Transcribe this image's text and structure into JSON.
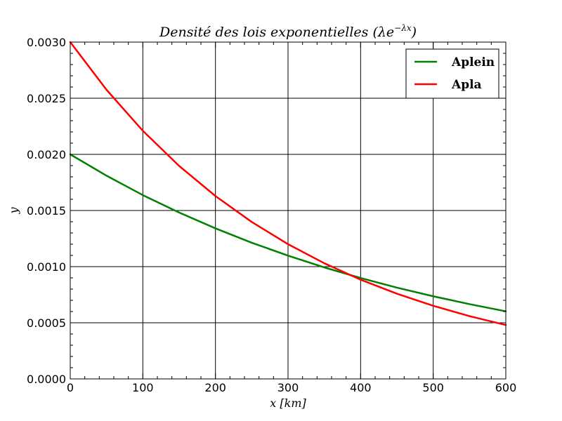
{
  "chart_data": {
    "type": "line",
    "title": "Densité des lois exponentielles (λe",
    "title_exponent": "−λx",
    "title_suffix": ")",
    "xlabel": "x [km]",
    "ylabel": "y",
    "xlim": [
      0,
      600
    ],
    "ylim": [
      0,
      0.003
    ],
    "xticks": [
      0,
      100,
      200,
      300,
      400,
      500,
      600
    ],
    "xtick_labels": [
      "0",
      "100",
      "200",
      "300",
      "400",
      "500",
      "600"
    ],
    "yticks": [
      0,
      0.0005,
      0.001,
      0.0015,
      0.002,
      0.0025,
      0.003
    ],
    "ytick_labels": [
      "0.0000",
      "0.0005",
      "0.0010",
      "0.0015",
      "0.0020",
      "0.0025",
      "0.0030"
    ],
    "grid": true,
    "legend_position": "top-right",
    "x": [
      0,
      50,
      100,
      150,
      200,
      250,
      300,
      350,
      400,
      450,
      500,
      550,
      600
    ],
    "series": [
      {
        "name": "Aplein",
        "color": "#008000",
        "values": [
          0.002,
          0.00181,
          0.001637,
          0.001482,
          0.001341,
          0.001213,
          0.001098,
          0.000993,
          0.000899,
          0.000813,
          0.000736,
          0.000666,
          0.000602
        ]
      },
      {
        "name": "Apla",
        "color": "#ff0000",
        "values": [
          0.003,
          0.002575,
          0.00221,
          0.001897,
          0.001629,
          0.001398,
          0.0012,
          0.00103,
          0.000884,
          0.000759,
          0.000651,
          0.000559,
          0.00048
        ]
      }
    ]
  }
}
